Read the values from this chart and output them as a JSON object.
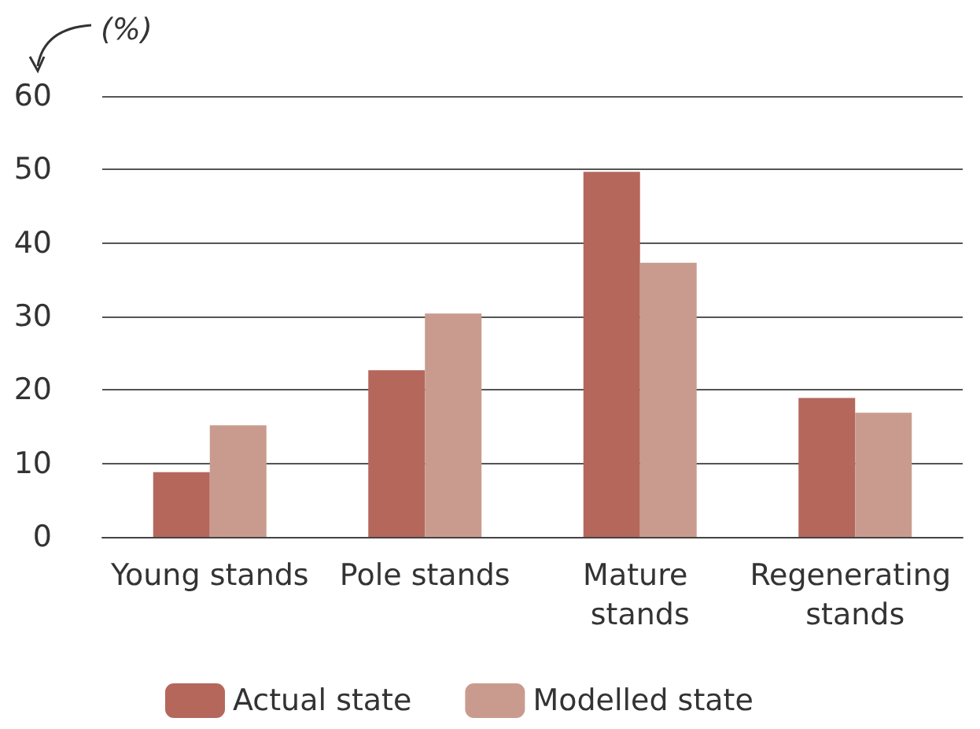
{
  "chart_data": {
    "type": "bar",
    "ylabel": "(%)",
    "categories": [
      "Young stands",
      "Pole stands",
      "Mature stands",
      "Regenerating stands"
    ],
    "series": [
      {
        "name": "Actual state",
        "color": "#b5675c",
        "values": [
          8.8,
          22.7,
          49.7,
          18.9
        ]
      },
      {
        "name": "Modelled state",
        "color": "#c99b8e",
        "values": [
          15.2,
          30.4,
          37.3,
          16.9
        ]
      }
    ],
    "ylim": [
      0,
      60
    ],
    "yticks": [
      0,
      10,
      20,
      30,
      40,
      50,
      60
    ],
    "grid": "y",
    "legend": "bottom"
  }
}
